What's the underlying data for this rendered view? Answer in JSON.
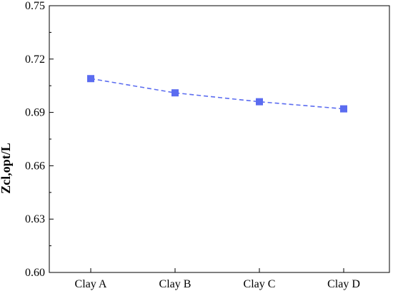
{
  "chart_data": {
    "type": "line",
    "title": "",
    "xlabel": "",
    "ylabel": "Zcl,opt/L",
    "categories": [
      "Clay A",
      "Clay B",
      "Clay C",
      "Clay D"
    ],
    "series": [
      {
        "values": [
          0.709,
          0.701,
          0.696,
          0.692
        ],
        "color": "#5b6cf0",
        "marker": "square",
        "line_style": "dashed"
      }
    ],
    "ylim": [
      0.6,
      0.75
    ],
    "yticks": [
      "0.60",
      "0.63",
      "0.66",
      "0.69",
      "0.72",
      "0.75"
    ],
    "grid": false,
    "legend": "none"
  }
}
